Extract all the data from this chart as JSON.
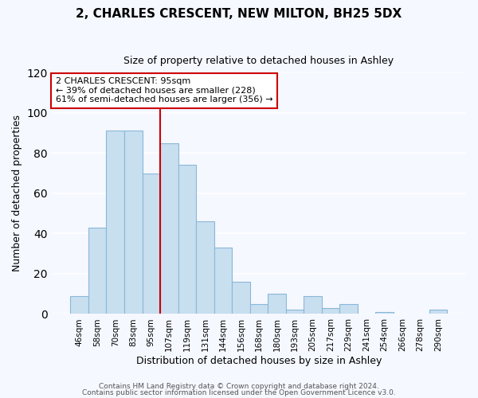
{
  "title": "2, CHARLES CRESCENT, NEW MILTON, BH25 5DX",
  "subtitle": "Size of property relative to detached houses in Ashley",
  "xlabel": "Distribution of detached houses by size in Ashley",
  "ylabel": "Number of detached properties",
  "bin_labels": [
    "46sqm",
    "58sqm",
    "70sqm",
    "83sqm",
    "95sqm",
    "107sqm",
    "119sqm",
    "131sqm",
    "144sqm",
    "156sqm",
    "168sqm",
    "180sqm",
    "193sqm",
    "205sqm",
    "217sqm",
    "229sqm",
    "241sqm",
    "254sqm",
    "266sqm",
    "278sqm",
    "290sqm"
  ],
  "bar_heights": [
    9,
    43,
    91,
    91,
    70,
    85,
    74,
    46,
    33,
    16,
    5,
    10,
    2,
    9,
    3,
    5,
    0,
    1,
    0,
    0,
    2
  ],
  "bar_color": "#c8dff0",
  "bar_edge_color": "#8ab8d8",
  "vline_x_index": 4,
  "vline_color": "#cc0000",
  "annotation_title": "2 CHARLES CRESCENT: 95sqm",
  "annotation_line1": "← 39% of detached houses are smaller (228)",
  "annotation_line2": "61% of semi-detached houses are larger (356) →",
  "annotation_box_color": "#ffffff",
  "annotation_box_edge_color": "#cc0000",
  "ylim": [
    0,
    120
  ],
  "yticks": [
    0,
    20,
    40,
    60,
    80,
    100,
    120
  ],
  "footer1": "Contains HM Land Registry data © Crown copyright and database right 2024.",
  "footer2": "Contains public sector information licensed under the Open Government Licence v3.0.",
  "background_color": "#f5f8ff",
  "grid_color": "#ffffff",
  "title_fontsize": 11,
  "subtitle_fontsize": 9,
  "xlabel_fontsize": 9,
  "ylabel_fontsize": 9,
  "tick_fontsize": 7.5,
  "footer_fontsize": 6.5
}
